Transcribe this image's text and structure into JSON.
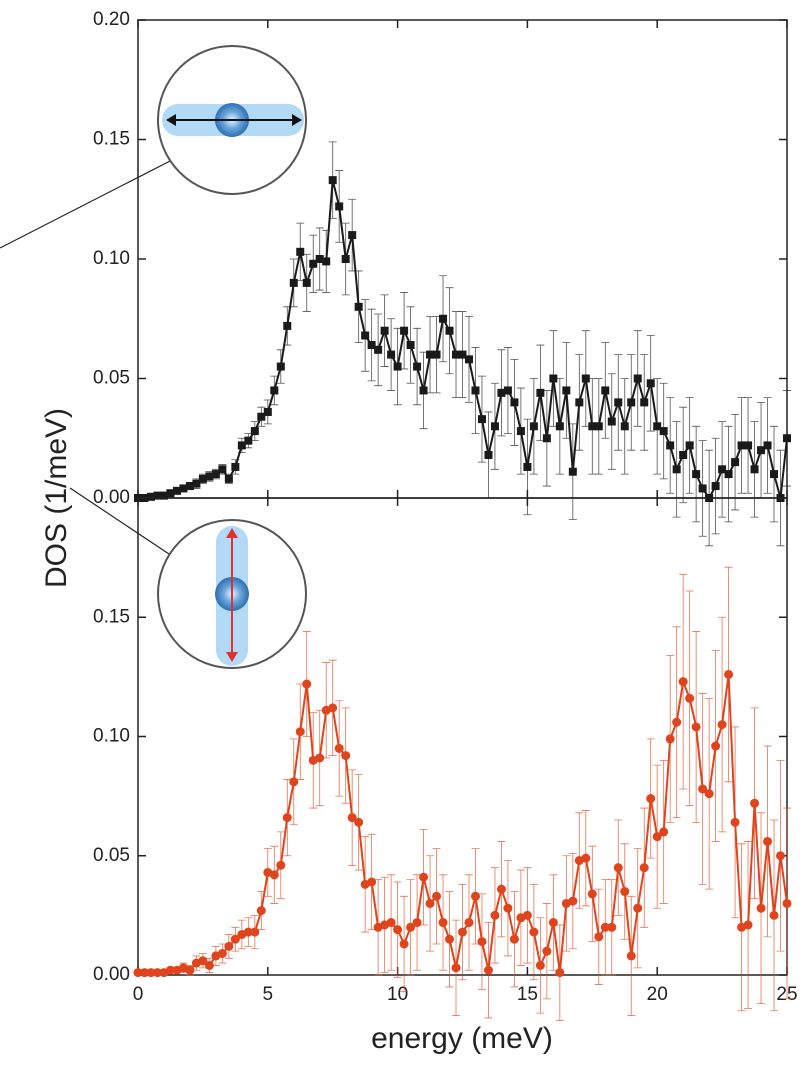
{
  "chart_data": [
    {
      "type": "scatter-line",
      "marker": "square",
      "ylabel": "DOS (1/meV)",
      "xlim": [
        0,
        25
      ],
      "ylim": [
        0,
        0.2
      ],
      "xticks": [
        0,
        5,
        10,
        15,
        20,
        25
      ],
      "xtick_labels": false,
      "yticks": [
        {
          "value": 0,
          "label": "0.00"
        },
        {
          "value": 0.05,
          "label": "0.05"
        },
        {
          "value": 0.1,
          "label": "0.10"
        },
        {
          "value": 0.15,
          "label": "0.15"
        },
        {
          "value": 0.2,
          "label": "0.20"
        }
      ],
      "x": [
        0,
        0.25,
        0.5,
        0.75,
        1,
        1.25,
        1.5,
        1.75,
        2,
        2.25,
        2.5,
        2.75,
        3,
        3.25,
        3.5,
        3.75,
        4,
        4.25,
        4.5,
        4.75,
        5,
        5.25,
        5.5,
        5.75,
        6,
        6.25,
        6.5,
        6.75,
        7,
        7.25,
        7.5,
        7.75,
        8,
        8.25,
        8.5,
        8.75,
        9,
        9.25,
        9.5,
        9.75,
        10,
        10.25,
        10.5,
        10.75,
        11,
        11.25,
        11.5,
        11.75,
        12,
        12.25,
        12.5,
        12.75,
        13,
        13.25,
        13.5,
        13.75,
        14,
        14.25,
        14.5,
        14.75,
        15,
        15.25,
        15.5,
        15.75,
        16,
        16.25,
        16.5,
        16.75,
        17,
        17.25,
        17.5,
        17.75,
        18,
        18.25,
        18.5,
        18.75,
        19,
        19.25,
        19.5,
        19.75,
        20,
        20.25,
        20.5,
        20.75,
        21,
        21.25,
        21.5,
        21.75,
        22,
        22.25,
        22.5,
        22.75,
        23,
        23.25,
        23.5,
        23.75,
        24,
        24.25,
        24.5,
        24.75,
        25
      ],
      "series": [
        {
          "color": "#1a1a1a",
          "values": [
            0,
            0,
            0.0005,
            0.001,
            0.001,
            0.002,
            0.003,
            0.004,
            0.005,
            0.006,
            0.008,
            0.009,
            0.01,
            0.012,
            0.008,
            0.013,
            0.022,
            0.024,
            0.028,
            0.034,
            0.036,
            0.045,
            0.055,
            0.072,
            0.09,
            0.103,
            0.09,
            0.098,
            0.1,
            0.099,
            0.133,
            0.122,
            0.1,
            0.11,
            0.08,
            0.068,
            0.064,
            0.062,
            0.07,
            0.06,
            0.055,
            0.07,
            0.064,
            0.055,
            0.045,
            0.06,
            0.06,
            0.075,
            0.07,
            0.06,
            0.06,
            0.058,
            0.045,
            0.033,
            0.018,
            0.03,
            0.044,
            0.045,
            0.04,
            0.028,
            0.013,
            0.03,
            0.044,
            0.025,
            0.05,
            0.03,
            0.045,
            0.011,
            0.04,
            0.05,
            0.03,
            0.03,
            0.045,
            0.032,
            0.04,
            0.03,
            0.04,
            0.05,
            0.04,
            0.048,
            0.03,
            0.028,
            0.022,
            0.012,
            0.018,
            0.022,
            0.01,
            0.004,
            0,
            0.005,
            0.012,
            0.01,
            0.015,
            0.022,
            0.022,
            0.012,
            0.02,
            0.022,
            0.01,
            0,
            0.025
          ],
          "errors": [
            0,
            0,
            0.0005,
            0.001,
            0.001,
            0.001,
            0.001,
            0.001,
            0.001,
            0.002,
            0.002,
            0.002,
            0.002,
            0.002,
            0.002,
            0.003,
            0.003,
            0.003,
            0.004,
            0.004,
            0.005,
            0.006,
            0.007,
            0.008,
            0.01,
            0.012,
            0.012,
            0.012,
            0.013,
            0.013,
            0.016,
            0.015,
            0.015,
            0.015,
            0.015,
            0.015,
            0.015,
            0.015,
            0.015,
            0.015,
            0.016,
            0.016,
            0.016,
            0.016,
            0.016,
            0.016,
            0.016,
            0.018,
            0.018,
            0.018,
            0.018,
            0.018,
            0.018,
            0.018,
            0.018,
            0.018,
            0.018,
            0.018,
            0.018,
            0.018,
            0.02,
            0.02,
            0.02,
            0.02,
            0.02,
            0.02,
            0.02,
            0.02,
            0.02,
            0.02,
            0.02,
            0.02,
            0.02,
            0.02,
            0.02,
            0.02,
            0.02,
            0.02,
            0.02,
            0.02,
            0.02,
            0.02,
            0.02,
            0.02,
            0.02,
            0.02,
            0.02,
            0.02,
            0.02,
            0.02,
            0.02,
            0.02,
            0.02,
            0.02,
            0.02,
            0.02,
            0.02,
            0.02,
            0.02,
            0.02,
            0.02
          ]
        }
      ]
    },
    {
      "type": "scatter-line",
      "marker": "circle",
      "xlabel": "energy (meV)",
      "xlim": [
        0,
        25
      ],
      "ylim": [
        0,
        0.2
      ],
      "xticks": [
        0,
        5,
        10,
        15,
        20,
        25
      ],
      "xtick_labels": true,
      "yticks": [
        {
          "value": 0,
          "label": "0.00"
        },
        {
          "value": 0.05,
          "label": "0.05"
        },
        {
          "value": 0.1,
          "label": "0.10"
        },
        {
          "value": 0.15,
          "label": "0.15"
        }
      ],
      "x": [
        0,
        0.25,
        0.5,
        0.75,
        1,
        1.25,
        1.5,
        1.75,
        2,
        2.25,
        2.5,
        2.75,
        3,
        3.25,
        3.5,
        3.75,
        4,
        4.25,
        4.5,
        4.75,
        5,
        5.25,
        5.5,
        5.75,
        6,
        6.25,
        6.5,
        6.75,
        7,
        7.25,
        7.5,
        7.75,
        8,
        8.25,
        8.5,
        8.75,
        9,
        9.25,
        9.5,
        9.75,
        10,
        10.25,
        10.5,
        10.75,
        11,
        11.25,
        11.5,
        11.75,
        12,
        12.25,
        12.5,
        12.75,
        13,
        13.25,
        13.5,
        13.75,
        14,
        14.25,
        14.5,
        14.75,
        15,
        15.25,
        15.5,
        15.75,
        16,
        16.25,
        16.5,
        16.75,
        17,
        17.25,
        17.5,
        17.75,
        18,
        18.25,
        18.5,
        18.75,
        19,
        19.25,
        19.5,
        19.75,
        20,
        20.25,
        20.5,
        20.75,
        21,
        21.25,
        21.5,
        21.75,
        22,
        22.25,
        22.5,
        22.75,
        23,
        23.25,
        23.5,
        23.75,
        24,
        24.25,
        24.5,
        24.75,
        25
      ],
      "series": [
        {
          "color": "#e0441c",
          "values": [
            0.001,
            0.001,
            0.001,
            0.001,
            0.001,
            0.002,
            0.002,
            0.003,
            0.002,
            0.005,
            0.006,
            0.004,
            0.008,
            0.009,
            0.012,
            0.015,
            0.017,
            0.018,
            0.018,
            0.027,
            0.043,
            0.042,
            0.046,
            0.066,
            0.081,
            0.102,
            0.122,
            0.09,
            0.091,
            0.111,
            0.112,
            0.095,
            0.092,
            0.066,
            0.064,
            0.038,
            0.039,
            0.02,
            0.021,
            0.022,
            0.019,
            0.013,
            0.02,
            0.022,
            0.041,
            0.03,
            0.033,
            0.022,
            0.015,
            0.003,
            0.018,
            0.022,
            0.033,
            0.014,
            0.002,
            0.025,
            0.036,
            0.028,
            0.015,
            0.024,
            0.025,
            0.018,
            0.004,
            0.01,
            0.022,
            0.001,
            0.03,
            0.031,
            0.048,
            0.049,
            0.034,
            0.016,
            0.02,
            0.02,
            0.045,
            0.035,
            0.008,
            0.028,
            0.045,
            0.074,
            0.058,
            0.06,
            0.099,
            0.106,
            0.123,
            0.116,
            0.104,
            0.078,
            0.076,
            0.096,
            0.105,
            0.126,
            0.064,
            0.02,
            0.021,
            0.072,
            0.028,
            0.056,
            0.025,
            0.05,
            0.03
          ],
          "errors": [
            0.001,
            0.001,
            0.001,
            0.001,
            0.001,
            0.001,
            0.001,
            0.002,
            0.002,
            0.003,
            0.003,
            0.003,
            0.004,
            0.004,
            0.005,
            0.005,
            0.006,
            0.006,
            0.007,
            0.008,
            0.01,
            0.012,
            0.014,
            0.016,
            0.018,
            0.02,
            0.022,
            0.02,
            0.02,
            0.02,
            0.02,
            0.02,
            0.02,
            0.02,
            0.02,
            0.02,
            0.02,
            0.02,
            0.02,
            0.02,
            0.02,
            0.02,
            0.02,
            0.02,
            0.02,
            0.02,
            0.02,
            0.02,
            0.02,
            0.02,
            0.02,
            0.02,
            0.02,
            0.02,
            0.02,
            0.02,
            0.02,
            0.02,
            0.02,
            0.02,
            0.02,
            0.02,
            0.02,
            0.02,
            0.02,
            0.02,
            0.02,
            0.02,
            0.02,
            0.02,
            0.02,
            0.02,
            0.02,
            0.02,
            0.02,
            0.02,
            0.025,
            0.025,
            0.025,
            0.025,
            0.03,
            0.03,
            0.035,
            0.04,
            0.045,
            0.045,
            0.04,
            0.04,
            0.04,
            0.04,
            0.045,
            0.045,
            0.04,
            0.035,
            0.035,
            0.04,
            0.04,
            0.04,
            0.04,
            0.04,
            0.04
          ]
        }
      ]
    }
  ]
}
